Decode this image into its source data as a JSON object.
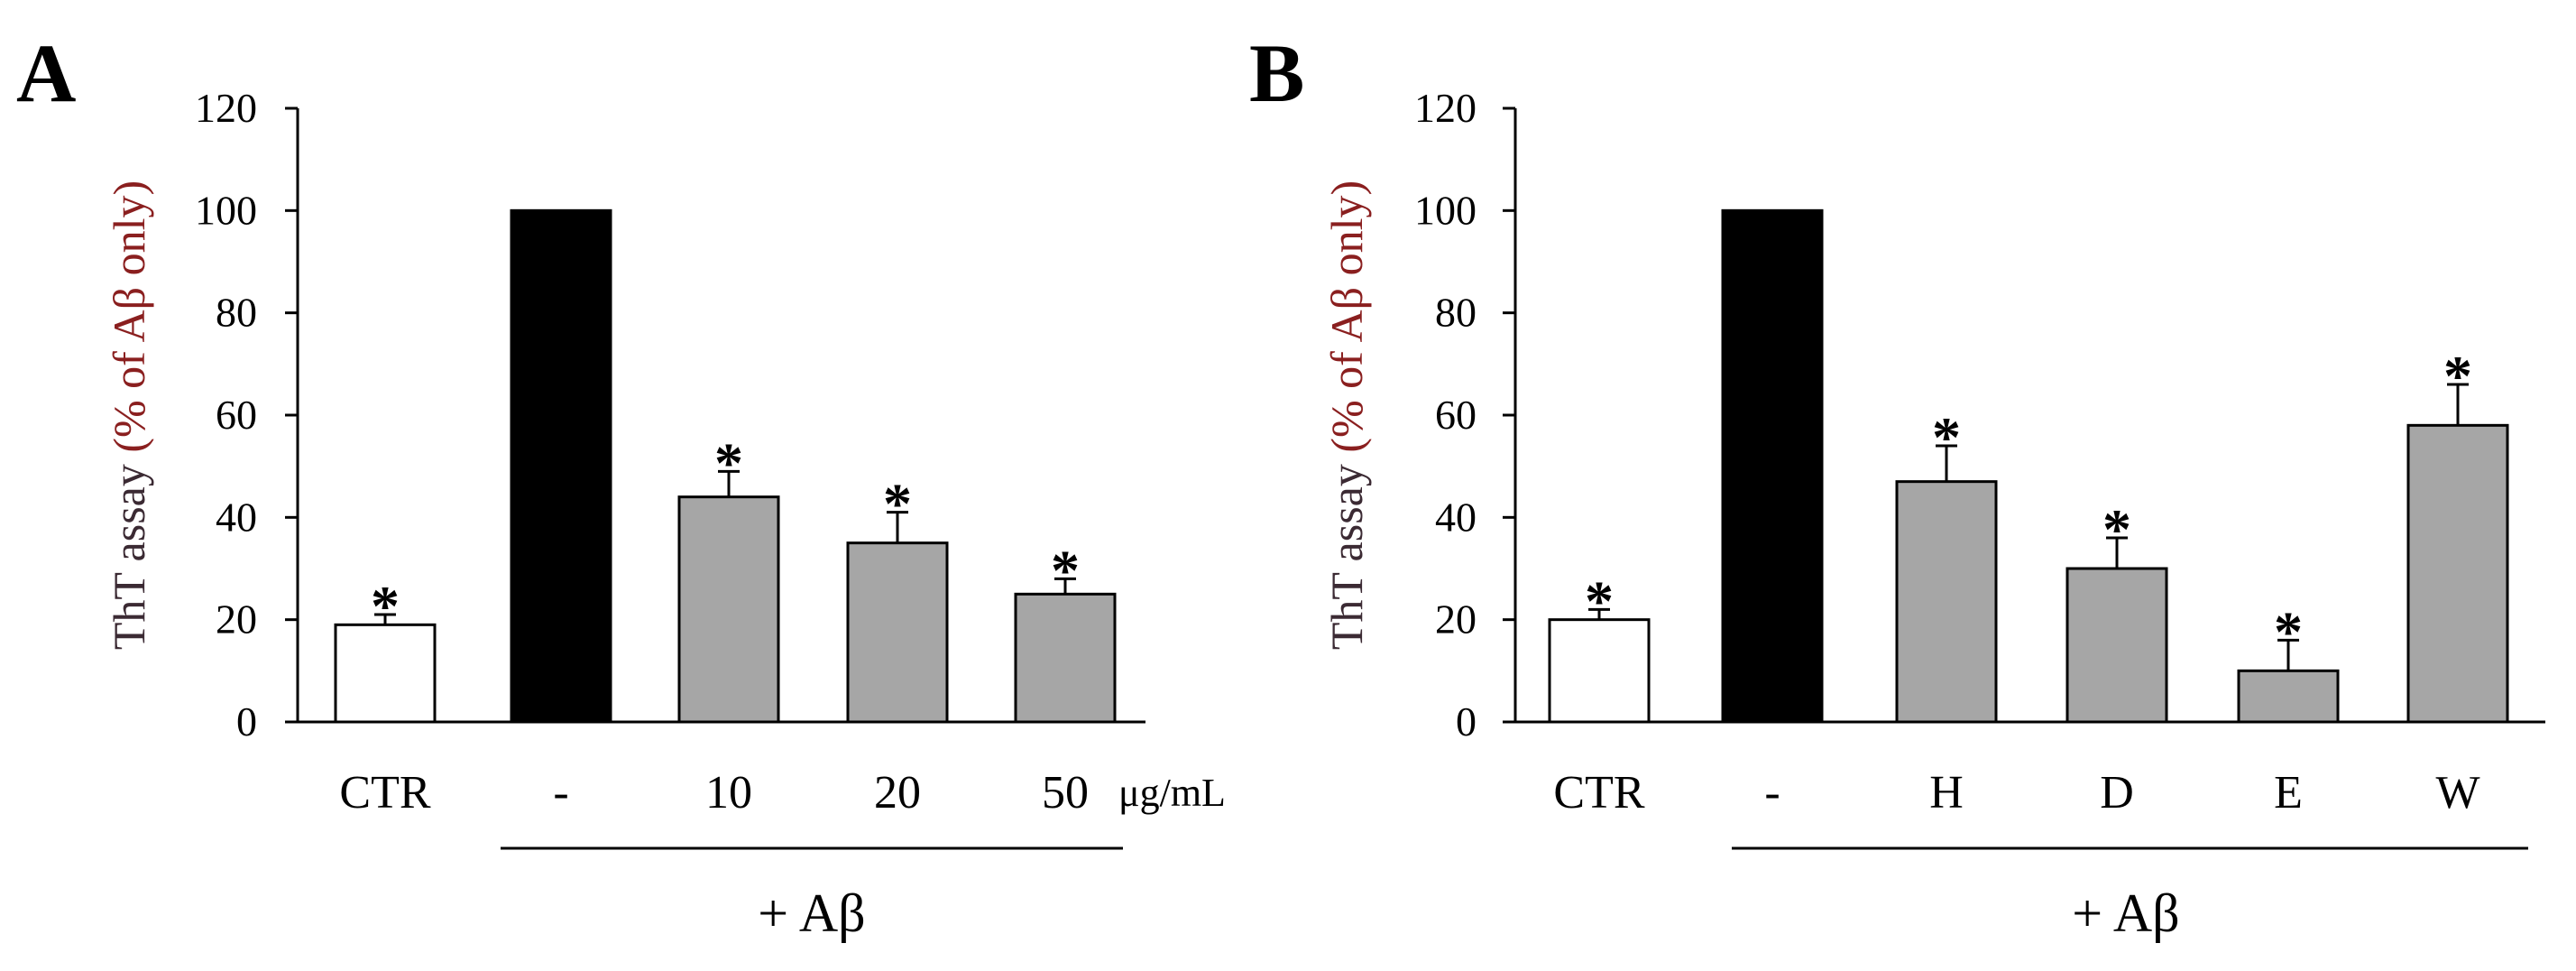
{
  "colors": {
    "control_bar": "#ffffff",
    "abeta_bar": "#000000",
    "treatment_bar": "#a6a6a6",
    "axis": "#000000",
    "ylabel_main": "#3b2a33",
    "ylabel_paren": "#8a1f1f"
  },
  "chart_data": [
    {
      "panel": "A",
      "type": "bar",
      "ylabel_main": "ThT assay",
      "ylabel_paren": "(% of Aβ only)",
      "ylim": [
        0,
        120
      ],
      "yticks": [
        0,
        20,
        40,
        60,
        80,
        100,
        120
      ],
      "grid": false,
      "categories": [
        "CTR",
        "-",
        "10",
        "20",
        "50"
      ],
      "values": [
        19,
        100,
        44,
        35,
        25
      ],
      "errors": [
        2,
        0,
        5,
        6,
        3
      ],
      "significance": [
        "*",
        "",
        "*",
        "*",
        "*"
      ],
      "bar_fill": [
        "control",
        "abeta",
        "treatment",
        "treatment",
        "treatment"
      ],
      "unit_label": "μg/mL",
      "group_label": "+ Aβ",
      "group_range": [
        1,
        4
      ]
    },
    {
      "panel": "B",
      "type": "bar",
      "ylabel_main": "ThT assay",
      "ylabel_paren": "(% of Aβ only)",
      "ylim": [
        0,
        120
      ],
      "yticks": [
        0,
        20,
        40,
        60,
        80,
        100,
        120
      ],
      "grid": false,
      "categories": [
        "CTR",
        "-",
        "H",
        "D",
        "E",
        "W"
      ],
      "values": [
        20,
        100,
        47,
        30,
        10,
        58
      ],
      "errors": [
        2,
        0,
        7,
        6,
        6,
        8
      ],
      "significance": [
        "*",
        "",
        "*",
        "*",
        "*",
        "*"
      ],
      "bar_fill": [
        "control",
        "abeta",
        "treatment",
        "treatment",
        "treatment",
        "treatment"
      ],
      "unit_label": "",
      "group_label": "+ Aβ",
      "group_range": [
        1,
        5
      ]
    }
  ]
}
